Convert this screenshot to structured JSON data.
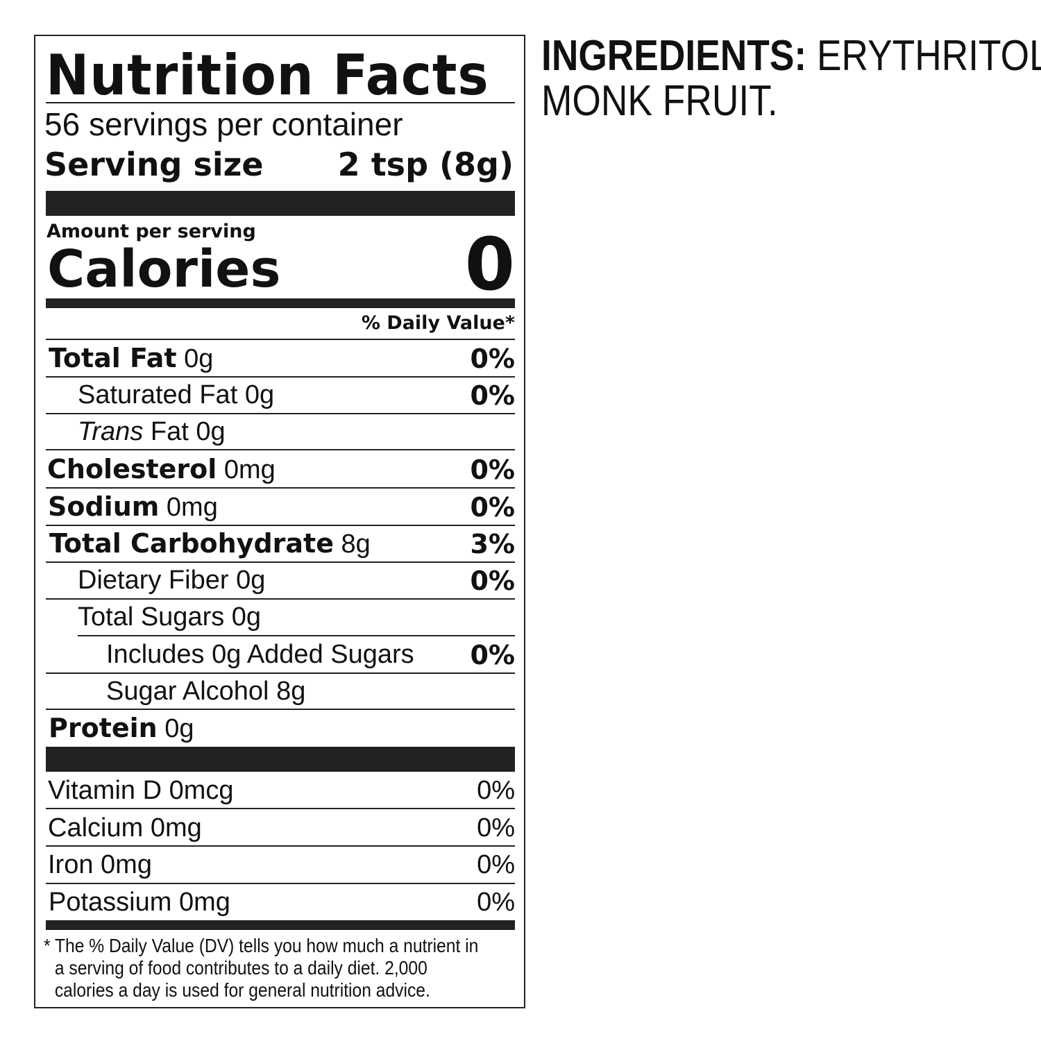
{
  "label": {
    "title": "Nutrition Facts",
    "servings_per_container": "56 servings per container",
    "serving_size_label": "Serving size",
    "serving_size_value": "2 tsp (8g)",
    "amount_per_serving": "Amount per serving",
    "calories_label": "Calories",
    "calories_value": "0",
    "daily_value_header": "% Daily Value*",
    "nutrients": [
      {
        "name": "Total Fat",
        "amount": "0g",
        "dv": "0%"
      },
      {
        "name": "Saturated Fat",
        "amount": "0g",
        "dv": "0%"
      },
      {
        "name": "Trans",
        "name_rest": "Fat",
        "amount": "0g",
        "dv": ""
      },
      {
        "name": "Cholesterol",
        "amount": "0mg",
        "dv": "0%"
      },
      {
        "name": "Sodium",
        "amount": "0mg",
        "dv": "0%"
      },
      {
        "name": "Total Carbohydrate",
        "amount": "8g",
        "dv": "3%"
      },
      {
        "name": "Dietary Fiber",
        "amount": "0g",
        "dv": "0%"
      },
      {
        "name": "Total Sugars",
        "amount": "0g",
        "dv": ""
      },
      {
        "name": "Includes 0g Added Sugars",
        "amount": "",
        "dv": "0%"
      },
      {
        "name": "Sugar Alcohol",
        "amount": "8g",
        "dv": ""
      },
      {
        "name": "Protein",
        "amount": "0g",
        "dv": ""
      }
    ],
    "vitamins": [
      {
        "name": "Vitamin D",
        "amount": "0mcg",
        "dv": "0%"
      },
      {
        "name": "Calcium",
        "amount": "0mg",
        "dv": "0%"
      },
      {
        "name": "Iron",
        "amount": "0mg",
        "dv": "0%"
      },
      {
        "name": "Potassium",
        "amount": "0mg",
        "dv": "0%"
      }
    ],
    "footnote": [
      "* The % Daily Value (DV) tells you how much a nutrient in",
      "a serving of food contributes to a daily diet. 2,000",
      "calories a day is used for general nutrition advice."
    ]
  },
  "ingredients": {
    "label": "INGREDIENTS:",
    "line1": "ERYTHRITOL,",
    "line2": "MONK FRUIT."
  }
}
